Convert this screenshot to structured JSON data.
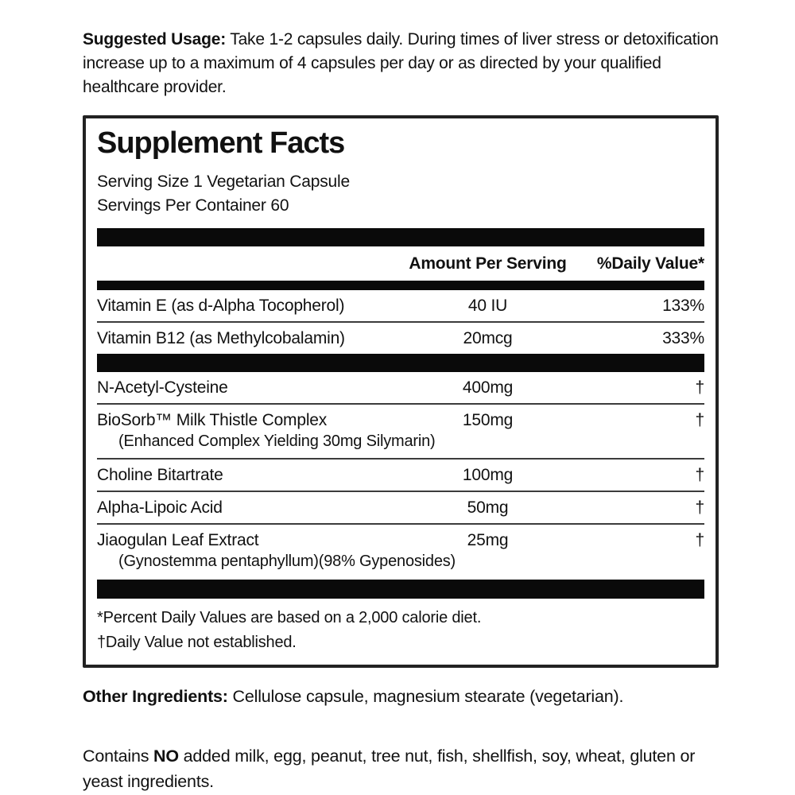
{
  "suggested_usage": {
    "label": "Suggested Usage:",
    "text": " Take 1-2 capsules daily. During times of liver stress or detoxification increase up to a maximum of 4 capsules per day or as directed by your qualified healthcare provider."
  },
  "supplement_facts": {
    "title": "Supplement Facts",
    "serving_size": "Serving Size 1 Vegetarian Capsule",
    "servings_per_container": "Servings Per Container 60",
    "columns": {
      "amount": "Amount Per Serving",
      "daily_value": "%Daily Value*"
    },
    "vitamin_rows": [
      {
        "name": "Vitamin E (as d-Alpha Tocopherol)",
        "amount": "40 IU",
        "dv": "133%"
      },
      {
        "name": "Vitamin B12 (as Methylcobalamin)",
        "amount": "20mcg",
        "dv": "333%"
      }
    ],
    "ingredient_rows": [
      {
        "name": "N-Acetyl-Cysteine",
        "amount": "400mg",
        "dv": "†"
      },
      {
        "name": "BioSorb™ Milk Thistle Complex",
        "sub": "(Enhanced Complex Yielding 30mg Silymarin)",
        "amount": "150mg",
        "dv": "†"
      },
      {
        "name": "Choline Bitartrate",
        "amount": "100mg",
        "dv": "†"
      },
      {
        "name": "Alpha-Lipoic Acid",
        "amount": "50mg",
        "dv": "†"
      },
      {
        "name": "Jiaogulan Leaf Extract",
        "sub": "(Gynostemma pentaphyllum)(98% Gypenosides)",
        "amount": "25mg",
        "dv": "†"
      }
    ],
    "footnotes": {
      "percent": "*Percent Daily Values are based on a 2,000 calorie diet.",
      "dagger": "†Daily Value not established."
    }
  },
  "other_ingredients": {
    "label": "Other Ingredients:",
    "text": " Cellulose capsule, magnesium stearate (vegetarian)."
  },
  "allergen_statement": {
    "prefix": "Contains ",
    "bold": "NO",
    "text": " added milk, egg, peanut, tree nut, fish, shellfish, soy, wheat, gluten or yeast ingredients."
  }
}
